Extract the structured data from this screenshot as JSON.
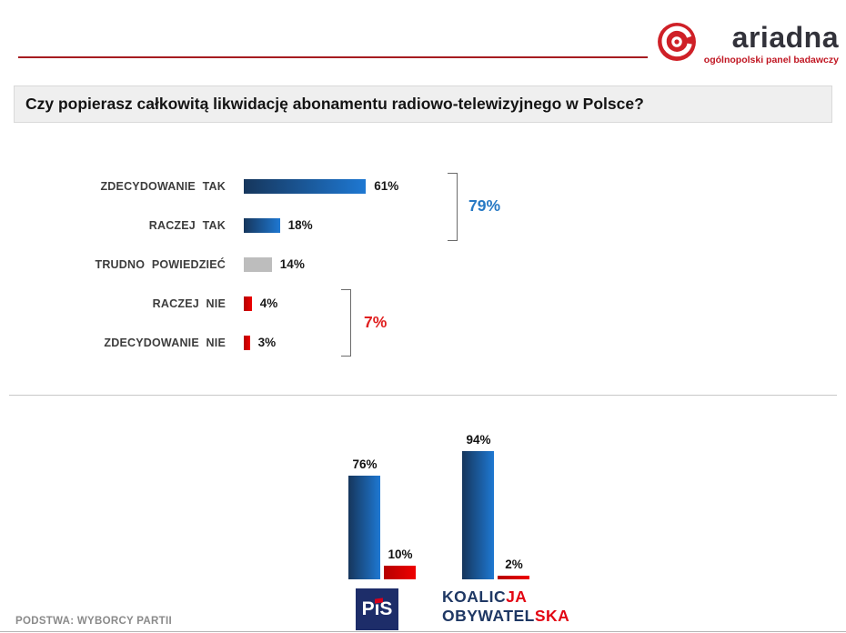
{
  "logo": {
    "name": "ariadna",
    "tagline": "ogólnopolski panel badawczy"
  },
  "question": "Czy popierasz całkowitą likwidację abonamentu radiowo-telewizyjnego w Polsce?",
  "colors": {
    "blue": "#1e78d2",
    "blue_dark": "#16365c",
    "red": "#ee0000",
    "red_dark": "#b50000",
    "gray": "#bdbdbd",
    "accent_blue_text": "#2779c4",
    "accent_red_text": "#e02020",
    "header_line_red": "#a61c20",
    "navy": "#1f3864"
  },
  "chart_data": [
    {
      "type": "bar",
      "orientation": "horizontal",
      "title": "Czy popierasz całkowitą likwidację abonamentu radiowo-telewizyjnego w Polsce?",
      "categories": [
        "ZDECYDOWANIE TAK",
        "RACZEJ TAK",
        "TRUDNO POWIEDZIEĆ",
        "RACZEJ NIE",
        "ZDECYDOWANIE NIE"
      ],
      "values": [
        61,
        18,
        14,
        4,
        3
      ],
      "value_labels": [
        "61%",
        "18%",
        "14%",
        "4%",
        "3%"
      ],
      "bar_colors": [
        "blue",
        "blue",
        "gray",
        "red",
        "red"
      ],
      "xlim": [
        0,
        100
      ],
      "grid": false,
      "groups": [
        {
          "label": "79%",
          "covers": [
            "ZDECYDOWANIE TAK",
            "RACZEJ TAK"
          ],
          "color": "#2779c4"
        },
        {
          "label": "7%",
          "covers": [
            "RACZEJ NIE",
            "ZDECYDOWANIE NIE"
          ],
          "color": "#e02020"
        }
      ]
    },
    {
      "type": "bar",
      "orientation": "vertical",
      "subtitle": "PODSTWA: WYBORCY PARTII",
      "categories": [
        "PiS",
        "KOALICJA OBYWATELSKA"
      ],
      "series": [
        {
          "color_name": "blue",
          "color": "#1e78d2",
          "values": [
            76,
            94
          ],
          "value_labels": [
            "76%",
            "94%"
          ]
        },
        {
          "color_name": "red",
          "color": "#ee0000",
          "values": [
            10,
            2
          ],
          "value_labels": [
            "10%",
            "2%"
          ]
        }
      ],
      "ylim": [
        0,
        100
      ],
      "grid": false,
      "legend": "none"
    }
  ],
  "party_logos": {
    "pis": "PiS",
    "ko_line1_a": "KOALIC",
    "ko_line1_b": "JA",
    "ko_line2_a": "OBYWATEL",
    "ko_line2_b": "SKA"
  },
  "footer": {
    "note": "PODSTWA: WYBORCY PARTII"
  }
}
